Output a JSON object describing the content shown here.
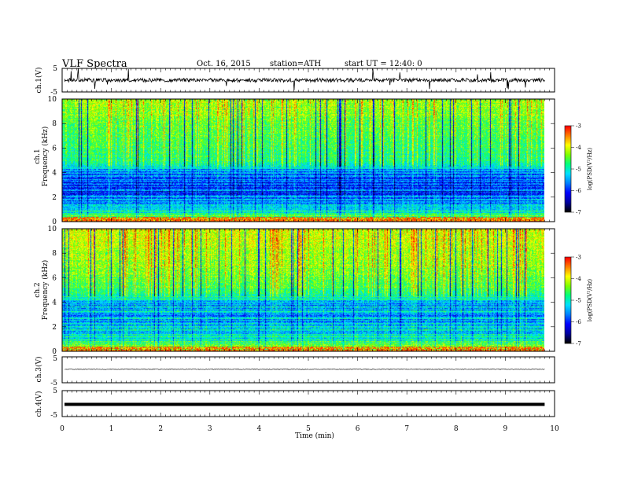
{
  "header": {
    "title": "VLF  Spectra",
    "date": "Oct. 16, 2015",
    "station": "station=ATH",
    "start": "start  UT  =   12:40: 0"
  },
  "colors": {
    "colormap": [
      "#000000",
      "#0000a0",
      "#0000ff",
      "#0080ff",
      "#00e0ff",
      "#00ff80",
      "#80ff00",
      "#ffff00",
      "#ff8000",
      "#ff0000",
      "#ffffff"
    ],
    "trace": "#000000"
  },
  "chart_data": [
    {
      "id": "ch1",
      "type": "line",
      "ylabel": "ch.1(V)",
      "ylim": [
        -5,
        5
      ],
      "yticks": [
        "5",
        "-5"
      ],
      "baseline": 0,
      "note_trace": "noisy signal near 0 V with spikes"
    },
    {
      "id": "spec1",
      "type": "heatmap",
      "ylabel": [
        "ch.1",
        "Frequency  (kHz)"
      ],
      "ylim": [
        0,
        10
      ],
      "yticks": [
        "0",
        "2",
        "4",
        "6",
        "8",
        "10"
      ],
      "xlim": [
        0,
        10
      ],
      "data_end_min": 9.8,
      "colorbar": {
        "label": "log(PSD(V²/Hz)",
        "range": [
          -7,
          -3
        ],
        "ticks": [
          "-3",
          "-4",
          "-5",
          "-6",
          "-7"
        ]
      },
      "level_profile_by_khz": [
        [
          0,
          0.9
        ],
        [
          0.6,
          0.55
        ],
        [
          1.5,
          0.35
        ],
        [
          3,
          0.25
        ],
        [
          4,
          0.35
        ],
        [
          5,
          0.55
        ],
        [
          7,
          0.6
        ],
        [
          10,
          0.7
        ]
      ]
    },
    {
      "id": "spec2",
      "type": "heatmap",
      "ylabel": [
        "ch.2",
        "Frequency  (kHz)"
      ],
      "ylim": [
        0,
        10
      ],
      "yticks": [
        "0",
        "2",
        "4",
        "6",
        "8",
        "10"
      ],
      "xlim": [
        0,
        10
      ],
      "data_end_min": 9.8,
      "colorbar": {
        "label": "log(PSD(V²/Hz)",
        "range": [
          -7,
          -3
        ],
        "ticks": [
          "-3",
          "-4",
          "-5",
          "-6",
          "-7"
        ]
      },
      "level_profile_by_khz": [
        [
          0,
          0.8
        ],
        [
          0.6,
          0.6
        ],
        [
          1.5,
          0.45
        ],
        [
          3,
          0.4
        ],
        [
          4,
          0.4
        ],
        [
          5,
          0.6
        ],
        [
          7,
          0.68
        ],
        [
          10,
          0.75
        ]
      ]
    },
    {
      "id": "ch3",
      "type": "line",
      "ylabel": "ch.3(V)",
      "ylim": [
        -5,
        5
      ],
      "yticks": [
        "5",
        "-5"
      ],
      "baseline": 0.2
    },
    {
      "id": "ch4",
      "type": "line",
      "ylabel": "ch.4(V)",
      "ylim": [
        -5,
        5
      ],
      "yticks": [
        "5",
        "-5"
      ],
      "baseline": -0.3
    }
  ],
  "xaxis": {
    "label": "Time  (min)",
    "range": [
      0,
      10
    ],
    "ticks": [
      "0",
      "1",
      "2",
      "3",
      "4",
      "5",
      "6",
      "7",
      "8",
      "9",
      "10"
    ]
  }
}
